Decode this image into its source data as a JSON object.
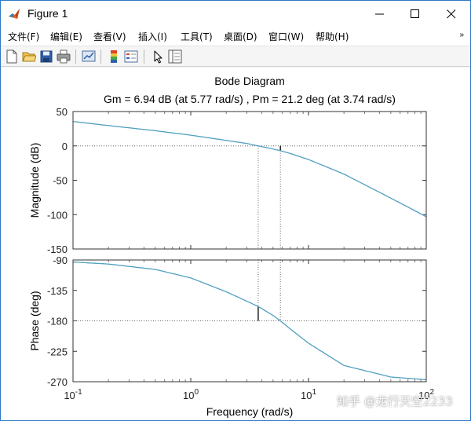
{
  "window": {
    "title": "Figure 1",
    "accent": "#2b79c9"
  },
  "menu": {
    "items": [
      {
        "label": "文件(F)"
      },
      {
        "label": "编辑(E)"
      },
      {
        "label": "查看(V)"
      },
      {
        "label": "插入(I)"
      },
      {
        "label": "工具(T)"
      },
      {
        "label": "桌面(D)"
      },
      {
        "label": "窗口(W)"
      },
      {
        "label": "帮助(H)"
      }
    ],
    "overflow_arrow": "»"
  },
  "toolbar": {
    "icons": [
      "new-figure-icon",
      "open-file-icon",
      "save-icon",
      "print-icon",
      "link-plot-icon",
      "colorbar-icon",
      "legend-icon",
      "pointer-icon",
      "property-inspector-icon"
    ]
  },
  "chart_data": {
    "type": "line",
    "title": "Bode Diagram",
    "subtitle": "Gm = 6.94 dB (at 5.77 rad/s) ,  Pm = 21.2 deg (at 3.74 rad/s)",
    "xlabel": "Frequency  (rad/s)",
    "x_scale": "log",
    "xlim": [
      0.1,
      100
    ],
    "x_ticks": [
      {
        "value": 0.1,
        "base": "10",
        "exp": "-1"
      },
      {
        "value": 1,
        "base": "10",
        "exp": "0"
      },
      {
        "value": 10,
        "base": "10",
        "exp": "1"
      },
      {
        "value": 100,
        "base": "10",
        "exp": "2"
      }
    ],
    "line_color": "#4f9fbf",
    "margin_line_color": "#000000",
    "grid": "dotted",
    "magnitude": {
      "ylabel": "Magnitude  (dB)",
      "ylim": [
        -150,
        50
      ],
      "y_ticks": [
        50,
        0,
        -50,
        -100,
        -150
      ],
      "x": [
        0.1,
        0.2,
        0.5,
        1,
        2,
        3,
        3.74,
        5,
        5.77,
        7,
        10,
        20,
        50,
        100
      ],
      "y": [
        35.5,
        29.6,
        22.1,
        15.6,
        8,
        3.5,
        0,
        -4.5,
        -6.94,
        -11,
        -19.8,
        -41,
        -76,
        -103
      ]
    },
    "phase": {
      "ylabel": "Phase  (deg)",
      "ylim": [
        -270,
        -90
      ],
      "y_ticks": [
        -90,
        -135,
        -180,
        -225,
        -270
      ],
      "x": [
        0.1,
        0.2,
        0.5,
        1,
        2,
        3,
        3.74,
        5,
        5.77,
        7,
        10,
        20,
        50,
        100
      ],
      "y": [
        -93,
        -96,
        -104,
        -116.5,
        -137,
        -151,
        -158.8,
        -172,
        -180,
        -192,
        -213,
        -246,
        -263,
        -267
      ]
    },
    "gain_margin": {
      "value_db": 6.94,
      "freq": 5.77
    },
    "phase_margin": {
      "value_deg": 21.2,
      "freq": 3.74
    }
  },
  "watermark": "知乎 @龙行天空2233"
}
